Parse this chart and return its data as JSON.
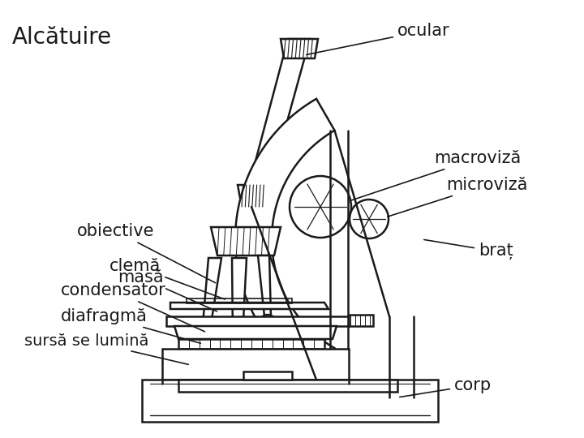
{
  "title": "Alcătuire",
  "background_color": "#ffffff",
  "line_color": "#1a1a1a",
  "label_texts": {
    "ocular": "ocular",
    "macroviza": "macroviză",
    "microviza": "microviză",
    "obiective": "obiective",
    "clema": "clemă",
    "condensator": "condensator",
    "masa": "masă",
    "diafragma": "diafragmă",
    "sursa": "sursă se lumină",
    "brat": "braț",
    "corp": "corp"
  },
  "title_fontsize": 20,
  "label_fontsize": 15
}
